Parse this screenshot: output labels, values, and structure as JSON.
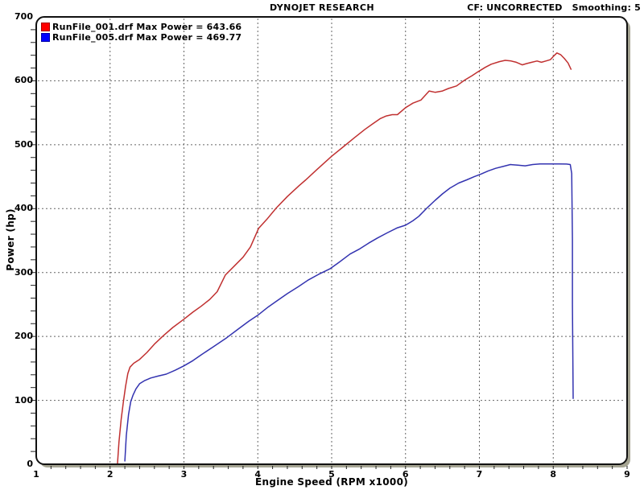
{
  "header": {
    "title": "DYNOJET RESEARCH",
    "correction": "CF: UNCORRECTED",
    "smoothing": "Smoothing: 5"
  },
  "chart_data": {
    "type": "line",
    "title": "DYNOJET RESEARCH",
    "xlabel": "Engine Speed (RPM x1000)",
    "ylabel": "Power (hp)",
    "xlim": [
      1,
      9
    ],
    "ylim": [
      0,
      700
    ],
    "x_ticks": [
      1,
      2,
      3,
      4,
      5,
      6,
      7,
      8,
      9
    ],
    "y_ticks": [
      0,
      100,
      200,
      300,
      400,
      500,
      600,
      700
    ],
    "x_minor_step": 0.2,
    "y_minor_step": 20,
    "grid": "dashed",
    "legend_position": "top-left",
    "series": [
      {
        "name": "RunFile_001.drf",
        "label": "RunFile_001.drf Max Power = 643.66",
        "max_power": 643.66,
        "color": "#ff0000",
        "line_color": "#c03030",
        "points": [
          [
            2.1,
            0
          ],
          [
            2.12,
            35
          ],
          [
            2.15,
            70
          ],
          [
            2.18,
            98
          ],
          [
            2.21,
            122
          ],
          [
            2.24,
            142
          ],
          [
            2.27,
            152
          ],
          [
            2.32,
            158
          ],
          [
            2.4,
            164
          ],
          [
            2.5,
            175
          ],
          [
            2.6,
            188
          ],
          [
            2.72,
            201
          ],
          [
            2.85,
            214
          ],
          [
            3.0,
            227
          ],
          [
            3.12,
            238
          ],
          [
            3.23,
            247
          ],
          [
            3.35,
            258
          ],
          [
            3.45,
            270
          ],
          [
            3.56,
            296
          ],
          [
            3.68,
            310
          ],
          [
            3.8,
            324
          ],
          [
            3.9,
            340
          ],
          [
            4.01,
            369
          ],
          [
            4.12,
            383
          ],
          [
            4.25,
            401
          ],
          [
            4.4,
            419
          ],
          [
            4.56,
            436
          ],
          [
            4.65,
            445
          ],
          [
            4.8,
            461
          ],
          [
            5.0,
            482
          ],
          [
            5.15,
            496
          ],
          [
            5.31,
            511
          ],
          [
            5.45,
            524
          ],
          [
            5.56,
            533
          ],
          [
            5.66,
            541
          ],
          [
            5.74,
            545
          ],
          [
            5.82,
            547
          ],
          [
            5.89,
            547
          ],
          [
            6.0,
            558
          ],
          [
            6.1,
            565
          ],
          [
            6.21,
            570
          ],
          [
            6.32,
            584
          ],
          [
            6.4,
            582
          ],
          [
            6.5,
            584
          ],
          [
            6.58,
            588
          ],
          [
            6.69,
            592
          ],
          [
            6.8,
            601
          ],
          [
            6.9,
            608
          ],
          [
            6.98,
            614
          ],
          [
            7.08,
            621
          ],
          [
            7.16,
            626
          ],
          [
            7.27,
            630
          ],
          [
            7.35,
            632
          ],
          [
            7.43,
            631
          ],
          [
            7.5,
            629
          ],
          [
            7.58,
            625
          ],
          [
            7.64,
            627
          ],
          [
            7.71,
            629
          ],
          [
            7.78,
            631
          ],
          [
            7.84,
            629
          ],
          [
            7.9,
            631
          ],
          [
            7.96,
            633
          ],
          [
            8.0,
            638
          ],
          [
            8.05,
            643.66
          ],
          [
            8.1,
            641
          ],
          [
            8.15,
            635
          ],
          [
            8.2,
            628
          ],
          [
            8.24,
            618
          ]
        ]
      },
      {
        "name": "RunFile_005.drf",
        "label": "RunFile_005.drf Max Power = 469.77",
        "max_power": 469.77,
        "color": "#0000ff",
        "line_color": "#3333b0",
        "points": [
          [
            2.2,
            5
          ],
          [
            2.22,
            45
          ],
          [
            2.25,
            78
          ],
          [
            2.28,
            98
          ],
          [
            2.31,
            108
          ],
          [
            2.35,
            118
          ],
          [
            2.4,
            126
          ],
          [
            2.47,
            131
          ],
          [
            2.55,
            135
          ],
          [
            2.65,
            138
          ],
          [
            2.76,
            141
          ],
          [
            2.88,
            147
          ],
          [
            3.0,
            154
          ],
          [
            3.12,
            162
          ],
          [
            3.23,
            171
          ],
          [
            3.4,
            184
          ],
          [
            3.58,
            198
          ],
          [
            3.74,
            212
          ],
          [
            3.88,
            224
          ],
          [
            4.01,
            234
          ],
          [
            4.14,
            246
          ],
          [
            4.25,
            255
          ],
          [
            4.4,
            267
          ],
          [
            4.55,
            278
          ],
          [
            4.68,
            288
          ],
          [
            4.82,
            297
          ],
          [
            4.98,
            306
          ],
          [
            5.1,
            316
          ],
          [
            5.25,
            329
          ],
          [
            5.38,
            337
          ],
          [
            5.5,
            346
          ],
          [
            5.62,
            354
          ],
          [
            5.75,
            362
          ],
          [
            5.89,
            370
          ],
          [
            6.0,
            374
          ],
          [
            6.1,
            381
          ],
          [
            6.18,
            388
          ],
          [
            6.29,
            401
          ],
          [
            6.4,
            413
          ],
          [
            6.5,
            423
          ],
          [
            6.6,
            432
          ],
          [
            6.72,
            440
          ],
          [
            6.83,
            445
          ],
          [
            6.93,
            450
          ],
          [
            7.02,
            454
          ],
          [
            7.12,
            459
          ],
          [
            7.22,
            463
          ],
          [
            7.32,
            466
          ],
          [
            7.42,
            469
          ],
          [
            7.52,
            468
          ],
          [
            7.62,
            467
          ],
          [
            7.72,
            469
          ],
          [
            7.82,
            470
          ],
          [
            7.95,
            470
          ],
          [
            8.08,
            470
          ],
          [
            8.18,
            469.77
          ],
          [
            8.23,
            469
          ],
          [
            8.25,
            455
          ],
          [
            8.26,
            350
          ],
          [
            8.26,
            250
          ],
          [
            8.27,
            103
          ]
        ]
      }
    ]
  },
  "colors": {
    "frame_border": "#111111",
    "frame_shadow": "#a6a593",
    "grid_major": "#666666",
    "tick": "#222222",
    "background": "#ffffff"
  }
}
